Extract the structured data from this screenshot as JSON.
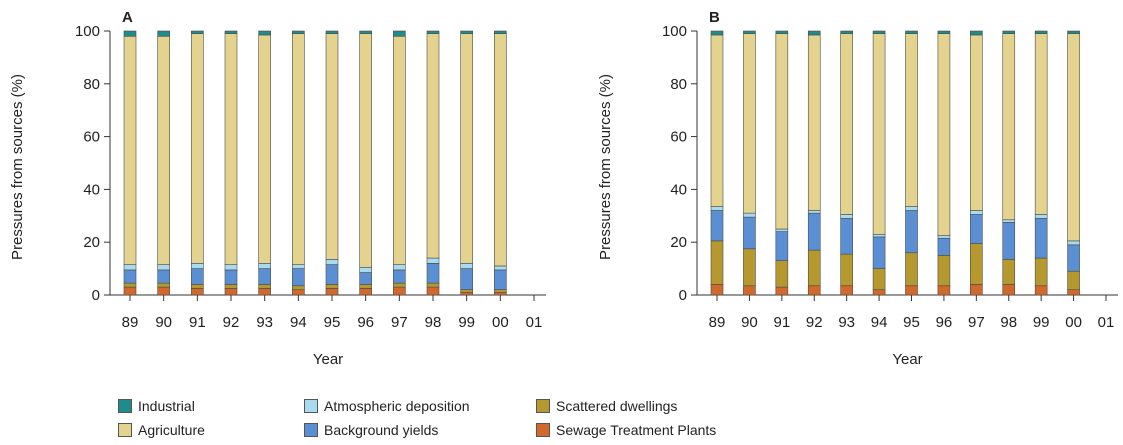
{
  "chart_data": [
    {
      "type": "bar",
      "stacked": true,
      "panel_label": "A",
      "title": "",
      "xlabel": "Year",
      "ylabel": "Pressures from sources (%)",
      "ylim": [
        0,
        100
      ],
      "yticks": [
        "0",
        "20",
        "40",
        "60",
        "80",
        "100"
      ],
      "categories": [
        "89",
        "90",
        "91",
        "92",
        "93",
        "94",
        "95",
        "96",
        "97",
        "98",
        "99",
        "00",
        "01"
      ],
      "series": [
        {
          "name": "Sewage Treatment Plants",
          "color": "#d2692c",
          "values": [
            3,
            3,
            2.5,
            2.5,
            2.5,
            2,
            2.5,
            2.5,
            3,
            3,
            1,
            1,
            null
          ]
        },
        {
          "name": "Scattered dwellings",
          "color": "#b5992f",
          "values": [
            1.5,
            1.5,
            1.5,
            1.5,
            1.5,
            1.5,
            1.5,
            1.5,
            1.5,
            1.5,
            1,
            1,
            null
          ]
        },
        {
          "name": "Background yields",
          "color": "#5b8fd3",
          "values": [
            5,
            5,
            6,
            5.5,
            6,
            6.5,
            7.5,
            4.5,
            5,
            7.5,
            8,
            7.5,
            null
          ]
        },
        {
          "name": "Atmospheric deposition",
          "color": "#a9dbf0",
          "values": [
            2,
            2,
            2,
            2,
            2,
            1.5,
            2,
            2,
            2,
            2,
            2,
            1.5,
            null
          ]
        },
        {
          "name": "Agriculture",
          "color": "#e3d38e",
          "values": [
            86.5,
            86.5,
            87,
            87.5,
            86.5,
            87.5,
            85.5,
            88.5,
            86.5,
            85,
            87,
            88,
            null
          ]
        },
        {
          "name": "Industrial",
          "color": "#1f8c8c",
          "values": [
            2,
            2,
            1,
            1,
            1.5,
            1,
            1,
            1,
            2,
            1,
            1,
            1,
            null
          ]
        }
      ]
    },
    {
      "type": "bar",
      "stacked": true,
      "panel_label": "B",
      "title": "",
      "xlabel": "Year",
      "ylabel": "Pressures from sources (%)",
      "ylim": [
        0,
        100
      ],
      "yticks": [
        "0",
        "20",
        "40",
        "60",
        "80",
        "100"
      ],
      "categories": [
        "89",
        "90",
        "91",
        "92",
        "93",
        "94",
        "95",
        "96",
        "97",
        "98",
        "99",
        "00",
        "01"
      ],
      "series": [
        {
          "name": "Sewage Treatment Plants",
          "color": "#d2692c",
          "values": [
            4,
            3.5,
            3,
            3.5,
            3.5,
            2,
            3.5,
            3.5,
            4,
            4,
            3.5,
            2,
            null
          ]
        },
        {
          "name": "Scattered dwellings",
          "color": "#b5992f",
          "values": [
            16.5,
            14,
            10,
            13.5,
            12,
            8,
            12.5,
            11.5,
            15.5,
            9.5,
            10.5,
            7,
            null
          ]
        },
        {
          "name": "Background yields",
          "color": "#5b8fd3",
          "values": [
            11.5,
            12,
            11,
            14,
            13.5,
            12,
            16,
            6.5,
            11,
            14,
            15,
            10,
            null
          ]
        },
        {
          "name": "Atmospheric deposition",
          "color": "#a9dbf0",
          "values": [
            1.5,
            1.5,
            1,
            1,
            1.5,
            1,
            1.5,
            1,
            1.5,
            1,
            1.5,
            1.5,
            null
          ]
        },
        {
          "name": "Agriculture",
          "color": "#e3d38e",
          "values": [
            65,
            68,
            74,
            66.5,
            68.5,
            76,
            65.5,
            76.5,
            66.5,
            70.5,
            68.5,
            78.5,
            null
          ]
        },
        {
          "name": "Industrial",
          "color": "#1f8c8c",
          "values": [
            1.5,
            1,
            1,
            1.5,
            1,
            1,
            1,
            1,
            1.5,
            1,
            1,
            1,
            null
          ]
        }
      ]
    }
  ],
  "legend": [
    {
      "name": "Industrial",
      "color": "#1f8c8c"
    },
    {
      "name": "Agriculture",
      "color": "#e3d38e"
    },
    {
      "name": "Atmospheric deposition",
      "color": "#a9dbf0"
    },
    {
      "name": "Background yields",
      "color": "#5b8fd3"
    },
    {
      "name": "Scattered dwellings",
      "color": "#b5992f"
    },
    {
      "name": "Sewage Treatment Plants",
      "color": "#d2692c"
    }
  ]
}
